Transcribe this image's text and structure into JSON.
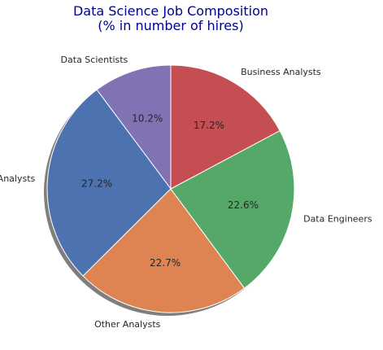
{
  "chart_data": {
    "type": "pie",
    "title": "Data Science Job Composition",
    "subtitle": "(% in number of hires)",
    "start_angle_deg": 90,
    "direction": "counterclockwise",
    "shadow": true,
    "slices": [
      {
        "label": "Data Scientists",
        "value": 10.2,
        "pct_label": "10.2%",
        "color": "#8172b3"
      },
      {
        "label": "Data Analysts",
        "value": 27.2,
        "pct_label": "27.2%",
        "color": "#4c72b0"
      },
      {
        "label": "Other Analysts",
        "value": 22.7,
        "pct_label": "22.7%",
        "color": "#dd8452"
      },
      {
        "label": "Data Engineers",
        "value": 22.6,
        "pct_label": "22.6%",
        "color": "#55a868"
      },
      {
        "label": "Business Analysts",
        "value": 17.2,
        "pct_label": "17.2%",
        "color": "#c44e52"
      }
    ]
  }
}
